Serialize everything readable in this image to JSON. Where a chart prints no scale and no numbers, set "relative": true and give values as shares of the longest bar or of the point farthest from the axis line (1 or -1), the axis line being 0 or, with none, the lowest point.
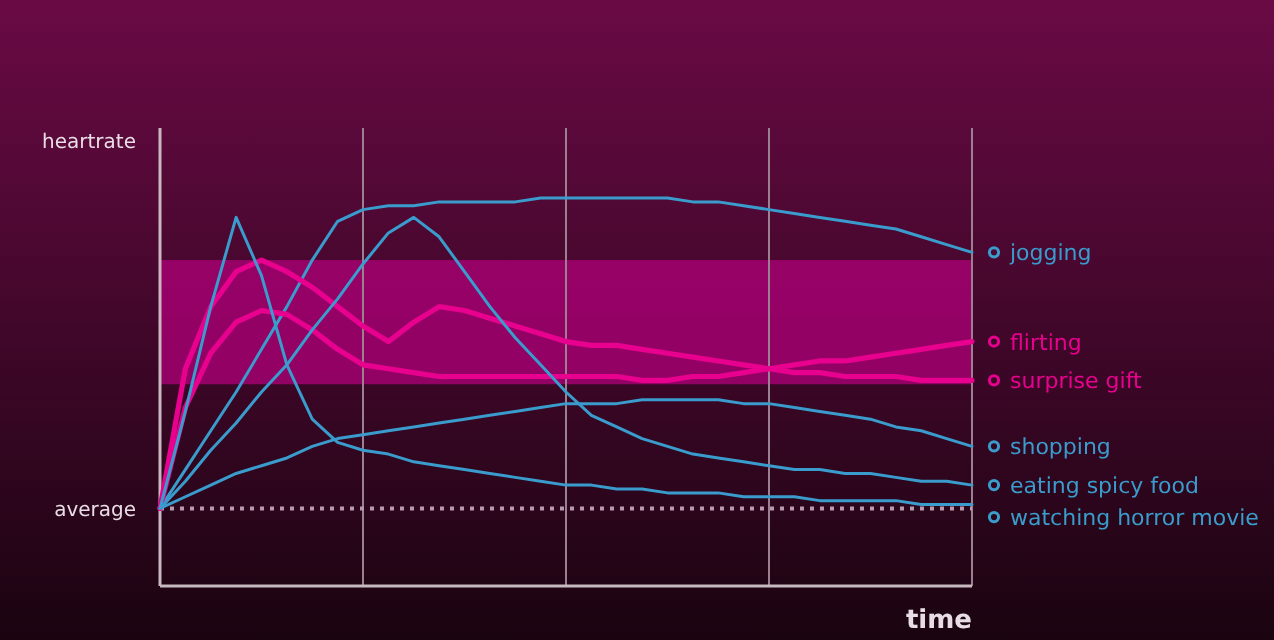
{
  "chart_data": {
    "type": "line",
    "relative": true,
    "ylabel": "heartrate",
    "xlabel": "time",
    "categories": [
      null,
      null,
      null,
      null,
      null,
      null,
      null,
      null,
      null,
      null,
      null,
      null,
      null,
      null,
      null,
      null,
      null,
      null,
      null,
      null,
      null,
      null,
      null,
      null,
      null,
      null,
      null,
      null,
      null,
      null,
      null,
      null,
      null
    ],
    "legend": "right",
    "grid": "x",
    "line_style": "solid",
    "ref_lines": [
      {
        "axis": "y",
        "value": 0.2,
        "label": "average",
        "color": "#b89aac",
        "line_style": "dotted"
      }
    ],
    "bands": [
      {
        "axis": "y",
        "from": 0.52,
        "to": 0.84,
        "color": "#b0007a"
      }
    ],
    "series": [
      {
        "name": "jogging",
        "color": "#3a9ccc",
        "values": [
          0.2,
          0.3,
          0.4,
          0.5,
          0.61,
          0.72,
          0.84,
          0.94,
          0.97,
          0.98,
          0.98,
          0.99,
          0.99,
          0.99,
          0.99,
          1.0,
          1.0,
          1.0,
          1.0,
          1.0,
          1.0,
          0.99,
          0.99,
          0.98,
          0.97,
          0.96,
          0.95,
          0.94,
          0.93,
          0.92,
          0.9,
          0.88,
          0.86
        ]
      },
      {
        "name": "flirting",
        "color": "#e8008e",
        "values": [
          0.2,
          0.46,
          0.6,
          0.68,
          0.71,
          0.7,
          0.66,
          0.61,
          0.57,
          0.56,
          0.55,
          0.54,
          0.54,
          0.54,
          0.54,
          0.54,
          0.54,
          0.54,
          0.54,
          0.53,
          0.53,
          0.54,
          0.54,
          0.55,
          0.56,
          0.57,
          0.58,
          0.58,
          0.59,
          0.6,
          0.61,
          0.62,
          0.63
        ]
      },
      {
        "name": "surprise gift",
        "color": "#e8008e",
        "values": [
          0.2,
          0.56,
          0.72,
          0.81,
          0.84,
          0.81,
          0.77,
          0.72,
          0.67,
          0.63,
          0.68,
          0.72,
          0.71,
          0.69,
          0.67,
          0.65,
          0.63,
          0.62,
          0.62,
          0.61,
          0.6,
          0.59,
          0.58,
          0.57,
          0.56,
          0.55,
          0.55,
          0.54,
          0.54,
          0.54,
          0.53,
          0.53,
          0.53
        ]
      },
      {
        "name": "shopping",
        "color": "#3a9ccc",
        "values": [
          0.2,
          0.23,
          0.26,
          0.29,
          0.31,
          0.33,
          0.36,
          0.38,
          0.39,
          0.4,
          0.41,
          0.42,
          0.43,
          0.44,
          0.45,
          0.46,
          0.47,
          0.47,
          0.47,
          0.48,
          0.48,
          0.48,
          0.48,
          0.47,
          0.47,
          0.46,
          0.45,
          0.44,
          0.43,
          0.41,
          0.4,
          0.38,
          0.36
        ]
      },
      {
        "name": "eating spicy food",
        "color": "#3a9ccc",
        "values": [
          0.2,
          0.27,
          0.35,
          0.42,
          0.5,
          0.57,
          0.66,
          0.74,
          0.83,
          0.91,
          0.95,
          0.9,
          0.81,
          0.72,
          0.64,
          0.57,
          0.5,
          0.44,
          0.41,
          0.38,
          0.36,
          0.34,
          0.33,
          0.32,
          0.31,
          0.3,
          0.3,
          0.29,
          0.29,
          0.28,
          0.27,
          0.27,
          0.26
        ]
      },
      {
        "name": "watching horror movie",
        "color": "#3a9ccc",
        "values": [
          0.2,
          0.45,
          0.72,
          0.95,
          0.8,
          0.57,
          0.43,
          0.37,
          0.35,
          0.34,
          0.32,
          0.31,
          0.3,
          0.29,
          0.28,
          0.27,
          0.26,
          0.26,
          0.25,
          0.25,
          0.24,
          0.24,
          0.24,
          0.23,
          0.23,
          0.23,
          0.22,
          0.22,
          0.22,
          0.22,
          0.21,
          0.21,
          0.21
        ]
      }
    ]
  }
}
